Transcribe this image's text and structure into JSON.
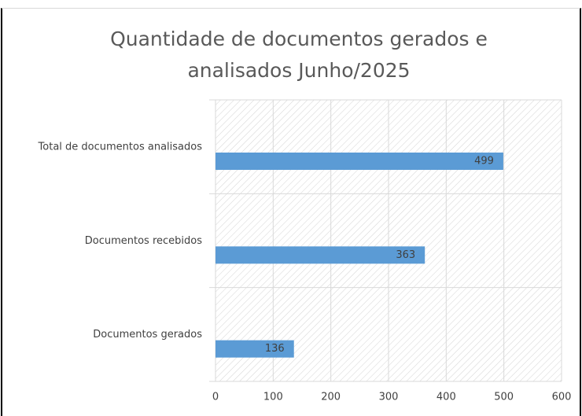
{
  "chart_data": {
    "type": "bar",
    "orientation": "horizontal",
    "title": "Quantidade de documentos gerados e analisados Junho/2025",
    "categories": [
      "Total de documentos analisados",
      "Documentos recebidos",
      "Documentos gerados"
    ],
    "values": [
      499,
      363,
      136
    ],
    "color": "#5b9bd5",
    "xlim": [
      0,
      600
    ],
    "xticks": [
      0,
      100,
      200,
      300,
      400,
      500,
      600
    ],
    "grid": true
  }
}
